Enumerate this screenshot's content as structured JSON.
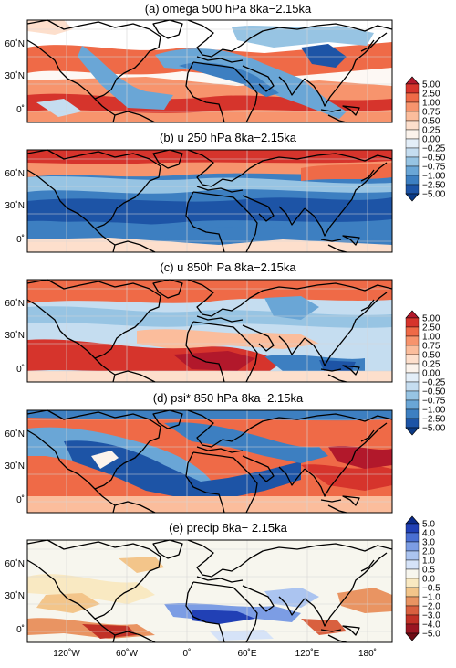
{
  "panels": [
    {
      "id": "a",
      "title": "(a) omega 500 hPa 8ka−2.15ka",
      "ylabels": [
        "60˚N",
        "30˚N",
        "0˚"
      ]
    },
    {
      "id": "b",
      "title": "(b) u 250 hPa 8ka−2.15ka",
      "ylabels": [
        "60˚N",
        "30˚N",
        "0˚"
      ]
    },
    {
      "id": "c",
      "title": "(c) u 850h Pa 8ka−2.15ka",
      "ylabels": [
        "60˚N",
        "30˚N",
        "0˚"
      ]
    },
    {
      "id": "d",
      "title": "(d) psi* 850 hPa 8ka−2.15ka",
      "ylabels": [
        "60˚N",
        "30˚N",
        "0˚"
      ]
    },
    {
      "id": "e",
      "title": "(e) precip 8ka− 2.15ka",
      "ylabels": [
        "60˚N",
        "30˚N",
        "0˚"
      ]
    }
  ],
  "xlabels": [
    "120˚W",
    "60˚W",
    "0˚",
    "60˚E",
    "120˚E",
    "180˚"
  ],
  "colorbars": [
    {
      "id": "ab",
      "labels": [
        "5.00",
        "2.50",
        "1.00",
        "0.75",
        "0.50",
        "0.25",
        "0.00",
        "−0.25",
        "−0.50",
        "−0.75",
        "−1.00",
        "−2.50",
        "−5.00"
      ],
      "colors": [
        "#b2182b",
        "#d6342c",
        "#ef6a47",
        "#f7946d",
        "#fbbd9c",
        "#fddfcc",
        "#fbf3ec",
        "#e3eef8",
        "#c5ddf0",
        "#97c4e3",
        "#6aa6d6",
        "#3d7fc1",
        "#1d54a6",
        "#0b3a86"
      ]
    },
    {
      "id": "cd",
      "labels": [
        "5.00",
        "2.50",
        "1.00",
        "0.75",
        "0.50",
        "0.25",
        "0.00",
        "−0.25",
        "−0.50",
        "−0.75",
        "−1.00",
        "−2.50",
        "−5.00"
      ],
      "colors": [
        "#b2182b",
        "#d6342c",
        "#ef6a47",
        "#f7946d",
        "#fbbd9c",
        "#fddfcc",
        "#fbf3ec",
        "#e3eef8",
        "#c5ddf0",
        "#97c4e3",
        "#6aa6d6",
        "#3d7fc1",
        "#1d54a6",
        "#0b3a86"
      ]
    },
    {
      "id": "e",
      "labels": [
        "5.0",
        "4.0",
        "3.0",
        "2.0",
        "1.0",
        "0.5",
        "0.0",
        "−0.5",
        "−1.0",
        "−2.0",
        "−3.0",
        "−4.0",
        "−5.0"
      ],
      "colors": [
        "#0a2a8a",
        "#2140b5",
        "#4a6fd2",
        "#7c9de4",
        "#abc4f0",
        "#d6e3f8",
        "#f7f6ee",
        "#f9e9c2",
        "#f3c58a",
        "#e99462",
        "#d9603f",
        "#c13126",
        "#9a1622",
        "#6e0c16"
      ]
    }
  ],
  "colors": {
    "positive": "#d6342c",
    "negative": "#1d54a6",
    "coast": "#000000"
  }
}
